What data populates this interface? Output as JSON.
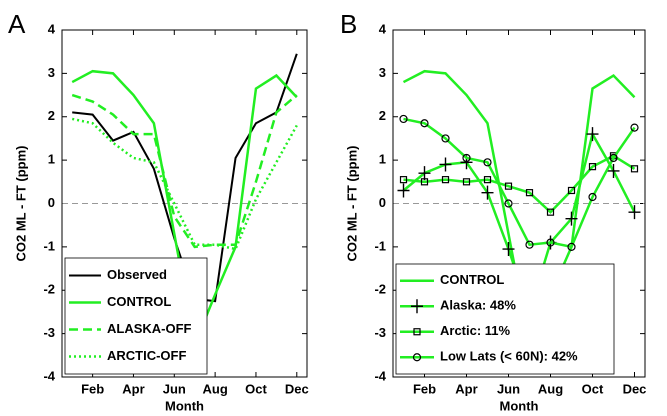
{
  "chart_data": [
    {
      "type": "line",
      "panel_label": "A",
      "xlabel": "Month",
      "ylabel": "CO2 ML - FT (ppm)",
      "x": [
        1,
        2,
        3,
        4,
        5,
        6,
        7,
        8,
        9,
        10,
        11,
        12
      ],
      "xlim": [
        0.5,
        12.5
      ],
      "xticks": [
        {
          "value": 2,
          "label": "Feb"
        },
        {
          "value": 4,
          "label": "Apr"
        },
        {
          "value": 6,
          "label": "Jun"
        },
        {
          "value": 8,
          "label": "Aug"
        },
        {
          "value": 10,
          "label": "Oct"
        },
        {
          "value": 12,
          "label": "Dec"
        }
      ],
      "ylim": [
        -4,
        4
      ],
      "yticks": [
        -4,
        -3,
        -2,
        -1,
        0,
        1,
        2,
        3,
        4
      ],
      "zero_line": true,
      "legend": "lower left",
      "series": [
        {
          "name": "Observed",
          "color": "#000000",
          "linestyle": "solid",
          "marker": "none",
          "values": [
            2.1,
            2.05,
            1.45,
            1.65,
            0.8,
            -0.8,
            -2.2,
            -2.25,
            1.05,
            1.85,
            2.1,
            3.45
          ]
        },
        {
          "name": "CONTROL",
          "color": "#22ee22",
          "linestyle": "solid",
          "marker": "none",
          "values": [
            2.8,
            3.05,
            3.0,
            2.5,
            1.85,
            -0.7,
            -3.25,
            -2.1,
            -1.0,
            2.65,
            2.95,
            2.45
          ]
        },
        {
          "name": "ALASKA-OFF",
          "color": "#22ee22",
          "linestyle": "dashed",
          "marker": "none",
          "values": [
            2.5,
            2.35,
            2.05,
            1.6,
            1.6,
            -0.3,
            -1.0,
            -0.95,
            -0.95,
            0.5,
            2.1,
            2.5
          ]
        },
        {
          "name": "ARCTIC-OFF",
          "color": "#22ee22",
          "linestyle": "dotted",
          "marker": "none",
          "values": [
            1.95,
            1.85,
            1.4,
            1.05,
            0.95,
            0.0,
            -0.95,
            -0.95,
            -1.05,
            0.1,
            0.95,
            1.8
          ]
        }
      ]
    },
    {
      "type": "line",
      "panel_label": "B",
      "xlabel": "Month",
      "ylabel": "CO2 ML - FT (ppm)",
      "x": [
        1,
        2,
        3,
        4,
        5,
        6,
        7,
        8,
        9,
        10,
        11,
        12
      ],
      "xlim": [
        0.5,
        12.5
      ],
      "xticks": [
        {
          "value": 2,
          "label": "Feb"
        },
        {
          "value": 4,
          "label": "Apr"
        },
        {
          "value": 6,
          "label": "Jun"
        },
        {
          "value": 8,
          "label": "Aug"
        },
        {
          "value": 10,
          "label": "Oct"
        },
        {
          "value": 12,
          "label": "Dec"
        }
      ],
      "ylim": [
        -4,
        4
      ],
      "yticks": [
        -4,
        -3,
        -2,
        -1,
        0,
        1,
        2,
        3,
        4
      ],
      "zero_line": true,
      "legend": "lower left",
      "series": [
        {
          "name": "CONTROL",
          "color": "#22ee22",
          "linestyle": "solid",
          "marker": "none",
          "values": [
            2.8,
            3.05,
            3.0,
            2.5,
            1.85,
            -0.7,
            -3.25,
            -2.1,
            -1.0,
            2.65,
            2.95,
            2.45
          ]
        },
        {
          "name": "Alaska: 48%",
          "color": "#22ee22",
          "linestyle": "solid",
          "marker": "plus",
          "values": [
            0.3,
            0.7,
            0.9,
            0.95,
            0.25,
            -1.05,
            -2.5,
            -0.9,
            -0.35,
            1.6,
            0.75,
            -0.2
          ]
        },
        {
          "name": "Arctic: 11%",
          "color": "#22ee22",
          "linestyle": "solid",
          "marker": "square",
          "values": [
            0.55,
            0.5,
            0.55,
            0.5,
            0.55,
            0.4,
            0.25,
            -0.2,
            0.3,
            0.85,
            1.1,
            0.8
          ]
        },
        {
          "name": "Low Lats (< 60N): 42%",
          "color": "#22ee22",
          "linestyle": "solid",
          "marker": "circle",
          "values": [
            1.95,
            1.85,
            1.5,
            1.05,
            0.95,
            0.0,
            -0.95,
            -0.9,
            -1.0,
            0.15,
            1.05,
            1.75
          ]
        }
      ]
    }
  ]
}
